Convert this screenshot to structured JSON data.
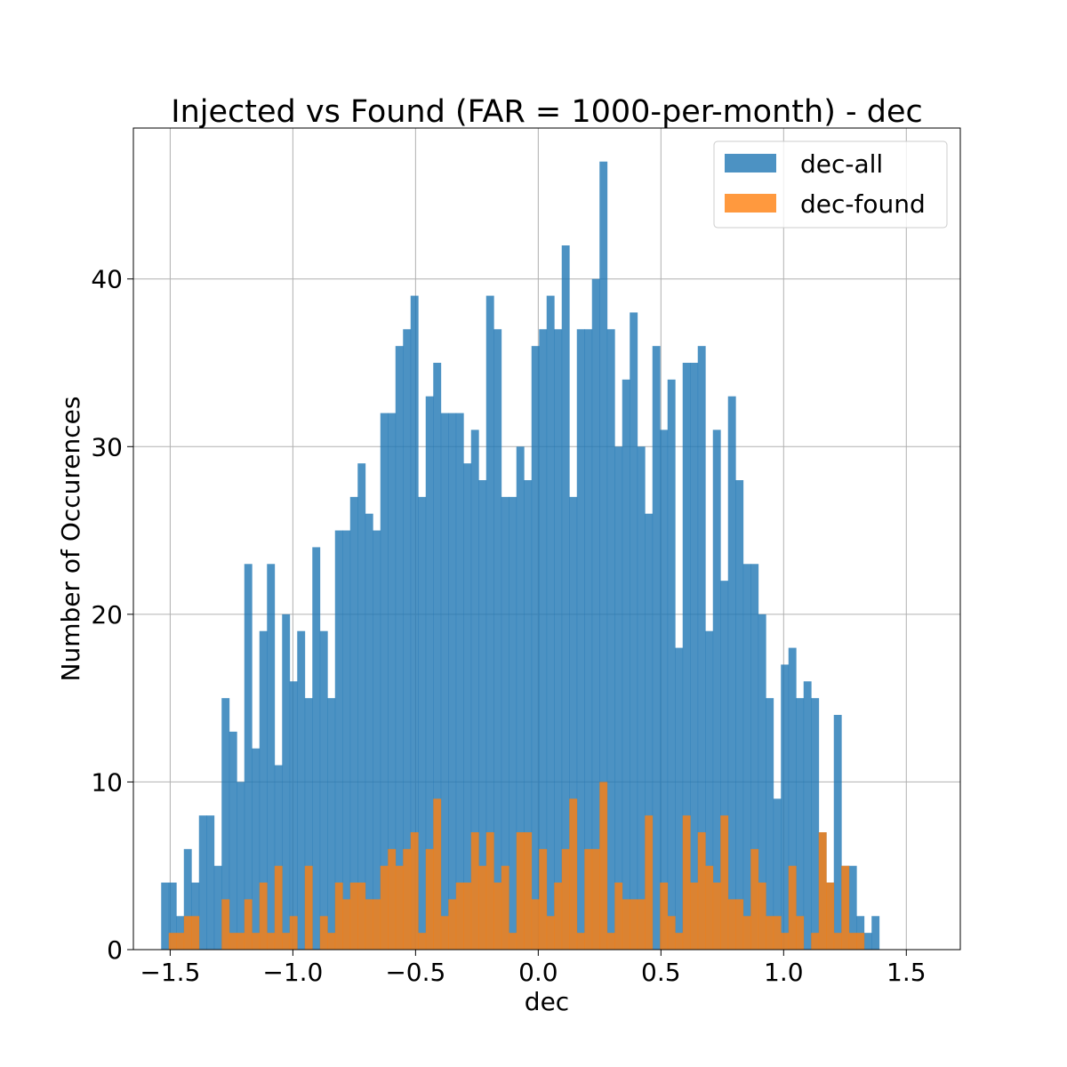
{
  "chart_data": {
    "type": "bar",
    "title": "Injected vs Found (FAR = 1000-per-month) - dec",
    "xlabel": "dec",
    "ylabel": "Number of Occurences",
    "xlim": [
      -1.65,
      1.72
    ],
    "ylim": [
      0,
      49
    ],
    "xticks": [
      "−1.5",
      "−1.0",
      "−0.5",
      "0.0",
      "0.5",
      "1.0",
      "1.5"
    ],
    "xtick_values": [
      -1.5,
      -1.0,
      -0.5,
      0.0,
      0.5,
      1.0,
      1.5
    ],
    "yticks": [
      "0",
      "10",
      "20",
      "30",
      "40"
    ],
    "ytick_values": [
      0,
      10,
      20,
      30,
      40
    ],
    "grid": true,
    "legend_position": "top-right",
    "bin_start": -1.5367,
    "bin_width": 0.0308,
    "series": [
      {
        "name": "dec-all",
        "color": "#1f77b4",
        "values": [
          4,
          4,
          2,
          6,
          4,
          8,
          8,
          5,
          15,
          13,
          10,
          23,
          12,
          19,
          23,
          11,
          20,
          16,
          19,
          15,
          24,
          19,
          15,
          25,
          25,
          27,
          29,
          26,
          25,
          32,
          32,
          36,
          37,
          39,
          27,
          33,
          35,
          32,
          32,
          32,
          29,
          31,
          28,
          39,
          37,
          27,
          27,
          30,
          28,
          36,
          37,
          39,
          37,
          42,
          27,
          37,
          37,
          40,
          47,
          37,
          30,
          34,
          38,
          30,
          26,
          36,
          31,
          34,
          18,
          35,
          35,
          36,
          19,
          31,
          22,
          33,
          28,
          23,
          23,
          20,
          15,
          9,
          17,
          18,
          15,
          16,
          15,
          7,
          4,
          14,
          5,
          5,
          2,
          1,
          2
        ]
      },
      {
        "name": "dec-found",
        "color": "#ff7f0e",
        "values": [
          0,
          1,
          1,
          2,
          2,
          0,
          0,
          0,
          3,
          1,
          1,
          3,
          1,
          4,
          1,
          5,
          1,
          2,
          0,
          5,
          0,
          2,
          1,
          4,
          3,
          4,
          4,
          3,
          3,
          5,
          6,
          5,
          6,
          7,
          1,
          6,
          9,
          2,
          3,
          4,
          4,
          7,
          5,
          7,
          4,
          5,
          1,
          7,
          7,
          3,
          6,
          2,
          4,
          6,
          9,
          1,
          6,
          6,
          10,
          1,
          4,
          3,
          3,
          3,
          8,
          0,
          4,
          2,
          1,
          8,
          4,
          7,
          5,
          4,
          8,
          3,
          3,
          2,
          6,
          4,
          2,
          2,
          1,
          5,
          2,
          0,
          1,
          7,
          4,
          1,
          5,
          1,
          1,
          0,
          0
        ]
      }
    ]
  }
}
